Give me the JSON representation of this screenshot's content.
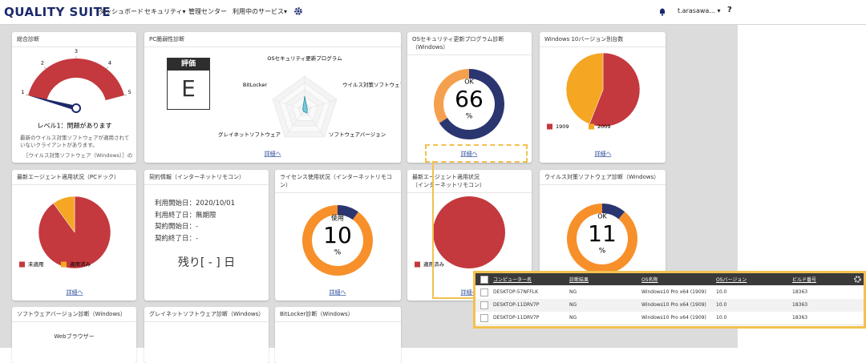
{
  "header": {
    "logo": "QUALITY SUITE",
    "nav": [
      "ダッシュボード",
      "セキュリティ▾",
      "管理センター",
      "利用中のサービス▾"
    ],
    "user": "t.arasawa... ▾",
    "help": "?"
  },
  "overall": {
    "title": "総合診断",
    "gauge_ticks": [
      1,
      2,
      3,
      4,
      5
    ],
    "level": 1,
    "status": "レベル1：問題があります",
    "message": "最新のウイルス対策ソフトウェアが適用されていないクライアントがあります。",
    "detail": "［ウイルス対策ソフトウェア（Windows）］の"
  },
  "pc_vuln": {
    "title": "PC脆弱性診断",
    "grade_label": "評価",
    "grade": "E",
    "radar": {
      "axes": [
        "OSセキュリティ更新プログラム",
        "ウイルス対策ソフトウェア",
        "ソフトウェアバージョン",
        "グレイネットソフトウェア",
        "BitLocker"
      ],
      "values": [
        2,
        0.4,
        0.6,
        0.3,
        0.3
      ],
      "max": 5
    },
    "link": "詳細へ"
  },
  "os_update": {
    "title": "OSセキュリティ更新プログラム診断（Windows）",
    "status": "OK",
    "value": 66,
    "unit": "%",
    "colors": [
      "#2b3670",
      "#f5a04e"
    ],
    "link": "詳細へ"
  },
  "win10": {
    "title": "Windows 10バージョン別台数",
    "series": [
      {
        "name": "1909",
        "color": "#c4393e",
        "value": 56
      },
      {
        "name": "2009",
        "color": "#f5a623",
        "value": 44
      }
    ],
    "link": "詳細へ"
  },
  "agent_pcdock": {
    "title": "最新エージェント適用状況（PCドック）",
    "series": [
      {
        "name": "未適用",
        "color": "#c4393e",
        "value": 90
      },
      {
        "name": "適用済み",
        "color": "#f5a623",
        "value": 10
      }
    ],
    "link": "詳細へ"
  },
  "contract": {
    "title": "契約情報（インターネットリモコン）",
    "lines": [
      "利用開始日：2020/10/01",
      "利用終了日：無期限",
      "契約開始日：-",
      "契約終了日：-"
    ],
    "remaining": "残り[ - ] 日"
  },
  "license": {
    "title": "ライセンス使用状況（インターネットリモコン）",
    "status": "使用",
    "value": 10,
    "unit": "%",
    "colors": [
      "#2b3670",
      "#f7902a"
    ],
    "link": "詳細へ"
  },
  "agent_remote": {
    "title": "最新エージェント適用状況\n（インターネットリモコン）",
    "series": [
      {
        "name": "適用済み",
        "color": "#c4393e",
        "value": 100
      }
    ],
    "link": "詳細へ"
  },
  "antivirus": {
    "title": "ウイルス対策ソフトウェア診断（Windows）",
    "status": "OK",
    "value": 11,
    "unit": "%",
    "colors": [
      "#2b3670",
      "#f7902a"
    ]
  },
  "software": {
    "title": "ソフトウェアバージョン診断（Windows）",
    "label": "Webブラウザー"
  },
  "graynet": {
    "title": "グレイネットソフトウェア診断（Windows）"
  },
  "bitlocker": {
    "title": "BitLocker診断（Windows）"
  },
  "table": {
    "columns": [
      "コンピューター名",
      "診断結果",
      "OS名称",
      "OSバージョン",
      "ビルド番号"
    ],
    "rows": [
      [
        "DESKTOP-57NFFLK",
        "NG",
        "Windows10 Pro x64 (1909)",
        "10.0",
        "18363"
      ],
      [
        "DESKTOP-11DRV7P",
        "NG",
        "Windows10 Pro x64 (1909)",
        "10.0",
        "18363"
      ],
      [
        "DESKTOP-11DRV7P",
        "NG",
        "Windows10 Pro x64 (1909)",
        "10.0",
        "18363"
      ]
    ]
  }
}
